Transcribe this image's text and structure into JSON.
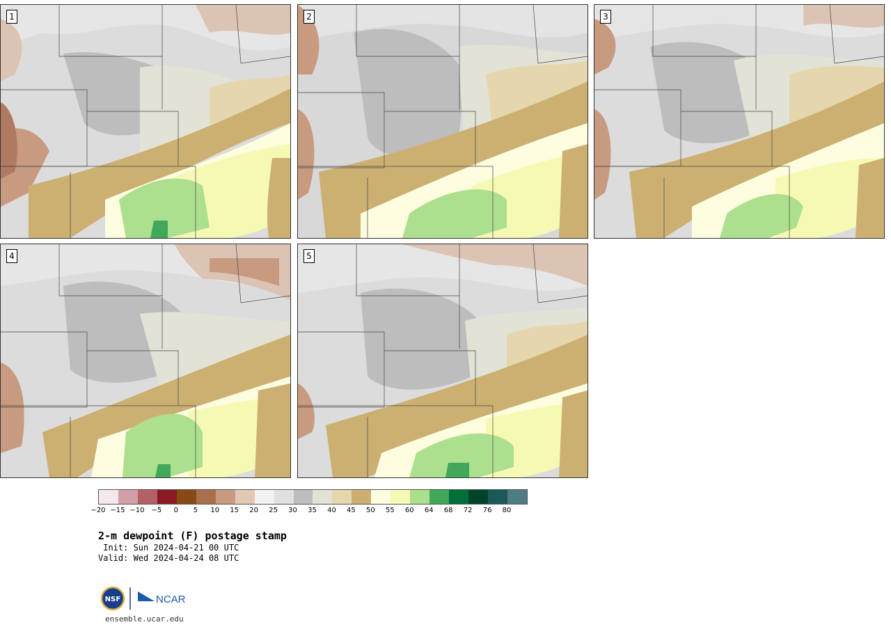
{
  "panels": [
    {
      "label": "1"
    },
    {
      "label": "2"
    },
    {
      "label": "3"
    },
    {
      "label": "4"
    },
    {
      "label": "5"
    }
  ],
  "colorbar": {
    "colors": [
      "#f4e8ea",
      "#d4a0a8",
      "#b46068",
      "#8a1a24",
      "#8a4a14",
      "#a8704a",
      "#c89a80",
      "#e2c8b4",
      "#f2f2f2",
      "#e0e0e0",
      "#bdbdbd",
      "#e2e2d6",
      "#e6d6ae",
      "#ccb072",
      "#fdfde0",
      "#f6f9b4",
      "#acdf8e",
      "#40a858",
      "#00703a",
      "#00442a",
      "#1c5a5a",
      "#4e7c84"
    ],
    "ticks": [
      "−20",
      "−15",
      "−10",
      "−5",
      "0",
      "5",
      "10",
      "15",
      "20",
      "25",
      "30",
      "35",
      "40",
      "45",
      "50",
      "55",
      "60",
      "64",
      "68",
      "72",
      "76",
      "80"
    ]
  },
  "title": "2-m dewpoint (F) postage stamp",
  "init": " Init: Sun 2024-04-21 00 UTC",
  "valid": "Valid: Wed 2024-04-24 08 UTC",
  "logos": {
    "nsf": "NSF",
    "ncar": "NCAR"
  },
  "site": "ensemble.ucar.edu"
}
